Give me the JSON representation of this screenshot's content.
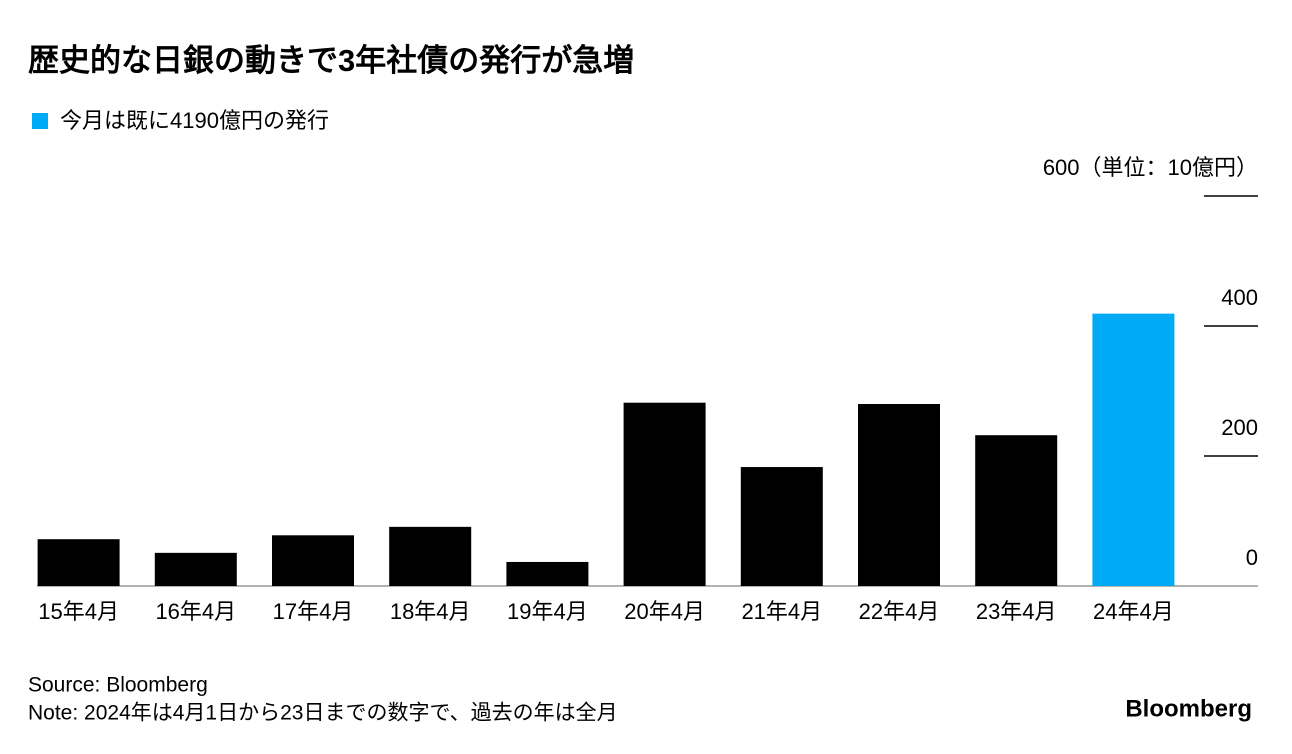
{
  "chart_data": {
    "type": "bar",
    "title": "歴史的な日銀の動きで3年社債の発行が急増",
    "legend": {
      "label": "今月は既に4190億円の発行",
      "color": "#00aaf5"
    },
    "categories": [
      "15年4月",
      "16年4月",
      "17年4月",
      "18年4月",
      "19年4月",
      "20年4月",
      "21年4月",
      "22年4月",
      "23年4月",
      "24年4月"
    ],
    "values": [
      72,
      51,
      78,
      91,
      37,
      282,
      183,
      280,
      232,
      419
    ],
    "colors": [
      "#000000",
      "#000000",
      "#000000",
      "#000000",
      "#000000",
      "#000000",
      "#000000",
      "#000000",
      "#000000",
      "#00aaf5"
    ],
    "ylim": [
      0,
      600
    ],
    "yticks": [
      0,
      200,
      400,
      {
        "value": 600,
        "label": "600（単位：10億円）"
      }
    ],
    "source": "Source: Bloomberg",
    "note": "Note: 2024年は4月1日から23日までの数字で、過去の年は全月",
    "logo": "Bloomberg"
  }
}
